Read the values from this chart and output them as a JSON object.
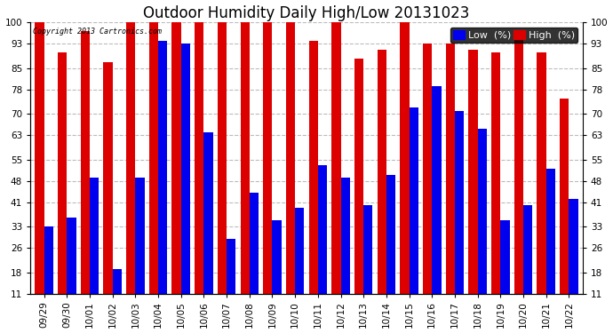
{
  "title": "Outdoor Humidity Daily High/Low 20131023",
  "copyright": "Copyright 2013 Cartronics.com",
  "legend_low": "Low  (%)",
  "legend_high": "High  (%)",
  "categories": [
    "09/29",
    "09/30",
    "10/01",
    "10/02",
    "10/03",
    "10/04",
    "10/05",
    "10/06",
    "10/07",
    "10/08",
    "10/09",
    "10/10",
    "10/11",
    "10/12",
    "10/13",
    "10/14",
    "10/15",
    "10/16",
    "10/17",
    "10/18",
    "10/19",
    "10/20",
    "10/21",
    "10/22"
  ],
  "high": [
    100,
    90,
    97,
    87,
    100,
    100,
    100,
    100,
    100,
    100,
    100,
    100,
    94,
    100,
    88,
    91,
    100,
    93,
    93,
    91,
    90,
    97,
    90,
    75
  ],
  "low": [
    33,
    36,
    49,
    19,
    49,
    94,
    93,
    64,
    29,
    44,
    35,
    39,
    53,
    49,
    40,
    50,
    72,
    79,
    71,
    65,
    35,
    40,
    52,
    42
  ],
  "bar_color_low": "#0000ee",
  "bar_color_high": "#dd0000",
  "background_color": "#ffffff",
  "plot_background": "#ffffff",
  "grid_color": "#bbbbbb",
  "ylim_min": 11,
  "ylim_max": 100,
  "yticks": [
    11,
    18,
    26,
    33,
    41,
    48,
    55,
    63,
    70,
    78,
    85,
    93,
    100
  ],
  "title_fontsize": 12,
  "tick_fontsize": 7.5,
  "legend_fontsize": 8,
  "figwidth": 6.9,
  "figheight": 3.75,
  "dpi": 100
}
